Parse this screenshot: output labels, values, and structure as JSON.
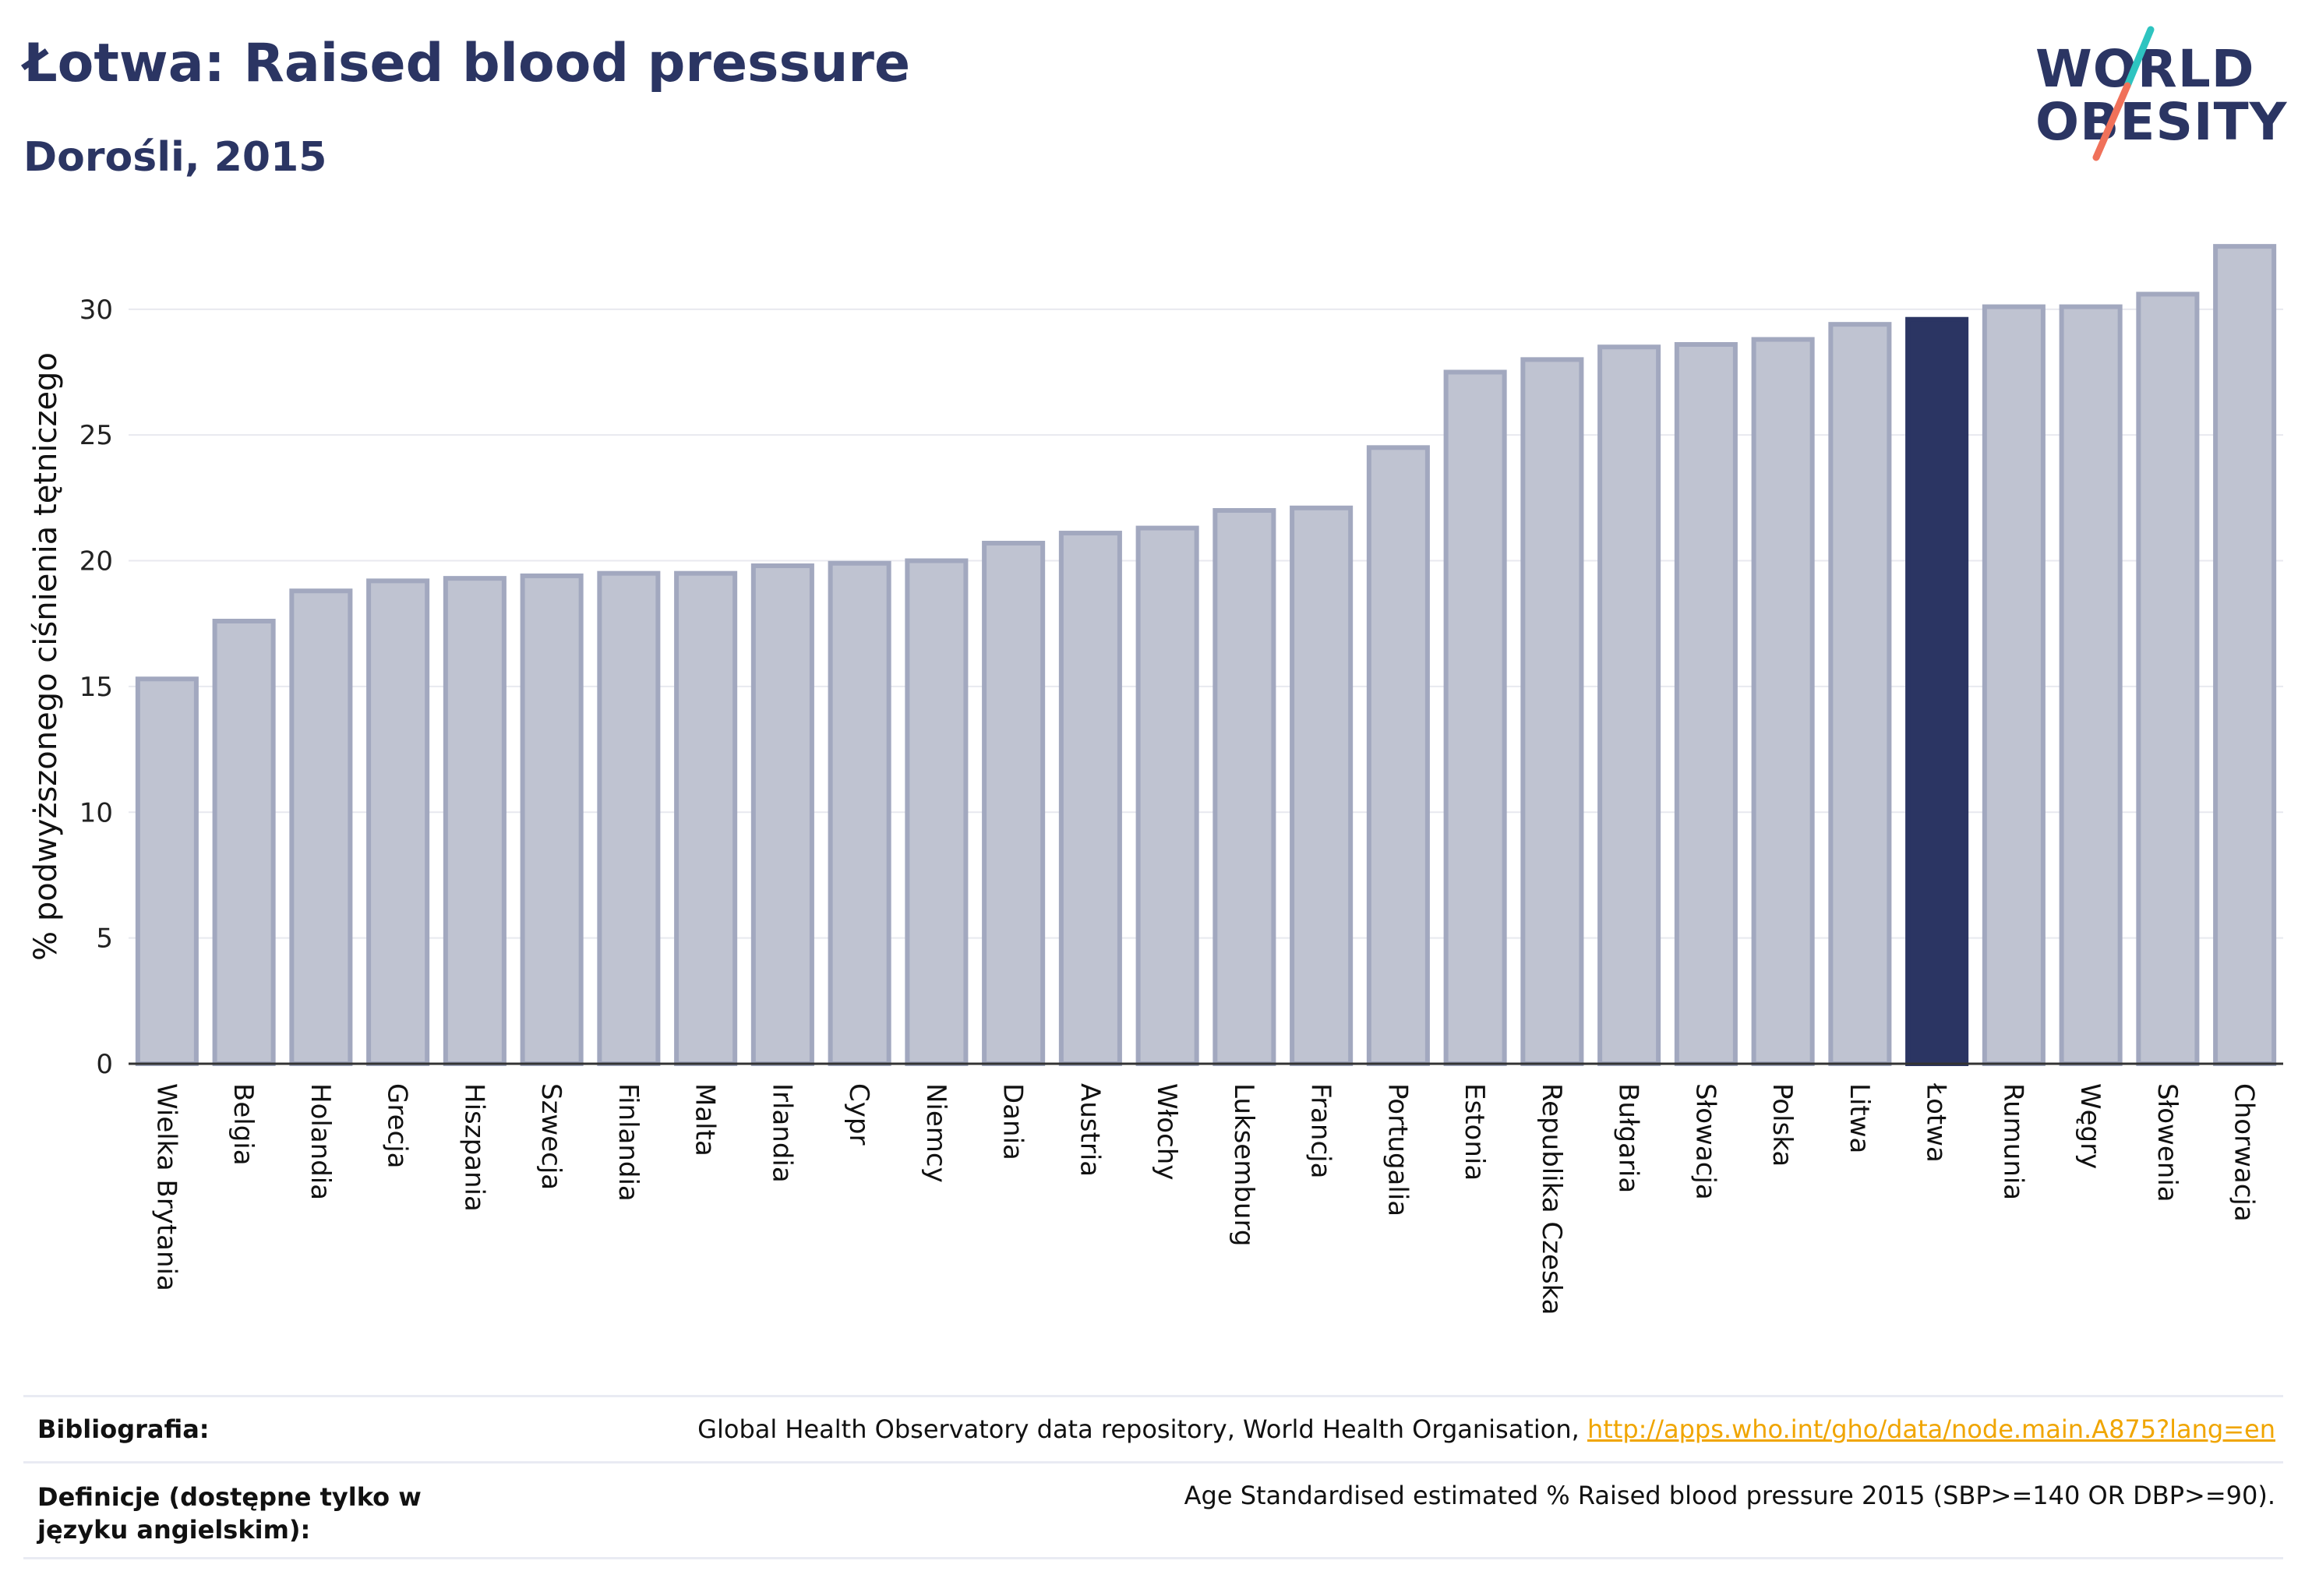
{
  "header": {
    "title": "Łotwa: Raised blood pressure",
    "subtitle": "Dorośli, 2015"
  },
  "logo": {
    "line1": "WORLD",
    "line2": "OBESITY",
    "accent_colors": [
      "#2ec4c0",
      "#f0715a"
    ]
  },
  "colors": {
    "bar_default": "#bfc3d1",
    "bar_border": "#a2a8bf",
    "bar_highlight": "#2b3563",
    "grid": "#e8e9ef",
    "axis": "#333333"
  },
  "chart_data": {
    "type": "bar",
    "title": "",
    "ylabel": "% podwyższonego ciśnienia tętniczego",
    "xlabel": "",
    "ylim": [
      0,
      33
    ],
    "yticks": [
      0,
      5,
      10,
      15,
      20,
      25,
      30
    ],
    "grid": true,
    "highlight": "Łotwa",
    "categories": [
      "Wielka Brytania",
      "Belgia",
      "Holandia",
      "Grecja",
      "Hiszpania",
      "Szwecja",
      "Finlandia",
      "Malta",
      "Irlandia",
      "Cypr",
      "Niemcy",
      "Dania",
      "Austria",
      "Włochy",
      "Luksemburg",
      "Francja",
      "Portugalia",
      "Estonia",
      "Republika Czeska",
      "Bułgaria",
      "Słowacja",
      "Polska",
      "Litwa",
      "Łotwa",
      "Rumunia",
      "Węgry",
      "Słowenia",
      "Chorwacja"
    ],
    "values": [
      15.3,
      17.6,
      18.8,
      19.2,
      19.3,
      19.4,
      19.5,
      19.5,
      19.8,
      19.9,
      20.0,
      20.7,
      21.1,
      21.3,
      22.0,
      22.1,
      24.5,
      27.5,
      28.0,
      28.5,
      28.6,
      28.8,
      29.4,
      29.6,
      30.1,
      30.1,
      30.6,
      32.5
    ]
  },
  "footer": {
    "bibliography_label": "Bibliografia:",
    "bibliography_text": "Global Health Observatory data repository, World Health Organisation,",
    "bibliography_link": "http://apps.who.int/gho/data/node.main.A875?lang=en",
    "definitions_label": "Definicje (dostępne tylko w języku angielskim):",
    "definitions_text": "Age Standardised estimated % Raised blood pressure 2015 (SBP>=140 OR DBP>=90)."
  }
}
